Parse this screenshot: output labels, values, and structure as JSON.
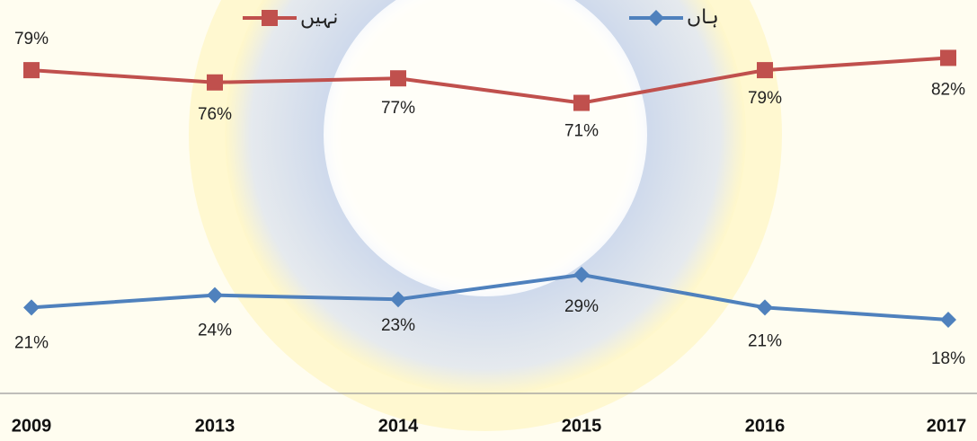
{
  "chart_data": {
    "type": "line",
    "categories": [
      "2009",
      "2013",
      "2014",
      "2015",
      "2016",
      "2017"
    ],
    "series": [
      {
        "name": "نہیں",
        "color": "#c0504d",
        "marker": "square",
        "values": [
          79,
          76,
          77,
          71,
          79,
          82
        ],
        "value_labels": [
          "79%",
          "76%",
          "77%",
          "71%",
          "79%",
          "82%"
        ]
      },
      {
        "name": "ہاں",
        "color": "#4f81bd",
        "marker": "diamond",
        "values": [
          21,
          24,
          23,
          29,
          21,
          18
        ],
        "value_labels": [
          "21%",
          "24%",
          "23%",
          "29%",
          "21%",
          "18%"
        ]
      }
    ],
    "ylim": [
      0,
      90
    ],
    "legend": "top"
  }
}
